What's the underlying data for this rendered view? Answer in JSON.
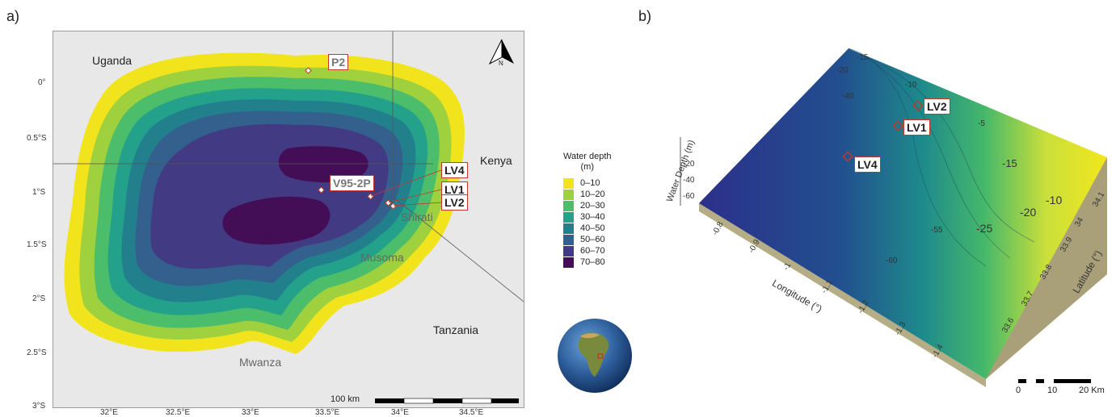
{
  "panel_a": {
    "label": "a)",
    "places": {
      "uganda": "Uganda",
      "kenya": "Kenya",
      "tanzania": "Tanzania",
      "shirati": "Shirati",
      "musoma": "Musoma",
      "mwanza": "Mwanza"
    },
    "sites": {
      "p2": "P2",
      "v95": "V95-2P",
      "lv4": "LV4",
      "lv1": "LV1",
      "lv2": "LV2"
    },
    "north": "N",
    "scale_label": "100 km",
    "lat_ticks": [
      "0°",
      "0.5°S",
      "1°S",
      "1.5°S",
      "2°S",
      "2.5°S",
      "3°S"
    ],
    "lon_ticks": [
      "32°E",
      "32.5°E",
      "33°E",
      "33.5°E",
      "34°E",
      "34.5°E"
    ]
  },
  "legend": {
    "title_line1": "Water depth",
    "title_line2": "(m)",
    "items": [
      {
        "label": "0–10",
        "color": "#f2e41c"
      },
      {
        "label": "10–20",
        "color": "#9fd13e"
      },
      {
        "label": "20–30",
        "color": "#4cbd6a"
      },
      {
        "label": "30–40",
        "color": "#23a18a"
      },
      {
        "label": "40–50",
        "color": "#22808d"
      },
      {
        "label": "50–60",
        "color": "#33608c"
      },
      {
        "label": "60–70",
        "color": "#433a84"
      },
      {
        "label": "70–80",
        "color": "#440e57"
      }
    ]
  },
  "panel_b": {
    "label": "b)",
    "sites": {
      "lv2": "LV2",
      "lv1": "LV1",
      "lv4": "LV4"
    },
    "z_label": "Water Depth (m)",
    "z_ticks": [
      "-20",
      "-40",
      "-60"
    ],
    "lon_label": "Longitude (°)",
    "lon_ticks": [
      "-0.8",
      "-0.9",
      "-1",
      "-1.1",
      "-1.2",
      "-1.3",
      "-1.4"
    ],
    "lat_label": "Latitude (°)",
    "lat_ticks": [
      "34.1",
      "34",
      "33.9",
      "33.8",
      "33.7",
      "33.6"
    ],
    "contours": [
      "-15",
      "-20",
      "-10",
      "-40",
      "-5",
      "-15",
      "-20",
      "-25",
      "-10",
      "-55",
      "-60"
    ],
    "scale_ticks": [
      "0",
      "10",
      "20 Km"
    ]
  }
}
